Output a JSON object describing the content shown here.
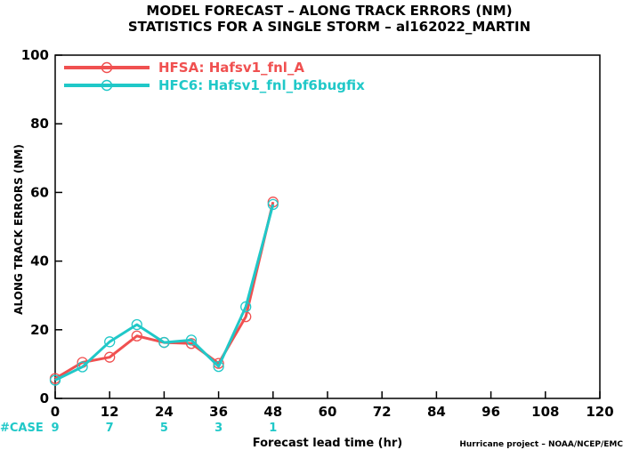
{
  "chart_data": {
    "type": "line",
    "title": "MODEL FORECAST – ALONG TRACK ERRORS (NM)",
    "subtitle": "STATISTICS FOR A SINGLE STORM – al162022_MARTIN",
    "xlabel": "Forecast lead time (hr)",
    "ylabel": "ALONG TRACK ERRORS (NM)",
    "xlim": [
      0,
      120
    ],
    "ylim": [
      0,
      100
    ],
    "xticks": [
      "0",
      "12",
      "24",
      "36",
      "48",
      "60",
      "72",
      "84",
      "96",
      "108",
      "120"
    ],
    "yticks": [
      "0",
      "20",
      "40",
      "60",
      "80",
      "100"
    ],
    "grid": false,
    "legend_position": "top-left",
    "series": [
      {
        "name": "HFSA: Hafsv1_fnl_A",
        "color": "#f05050",
        "x": [
          0,
          6,
          12,
          18,
          24,
          30,
          36,
          42,
          48
        ],
        "values": [
          5.8,
          10.5,
          12.0,
          18.2,
          16.3,
          16.0,
          10.2,
          23.8,
          57.2
        ]
      },
      {
        "name": "HFC6: Hafsv1_fnl_bf6bugfix",
        "color": "#20c8c8",
        "x": [
          0,
          6,
          12,
          18,
          24,
          30,
          36,
          42,
          48
        ],
        "values": [
          5.3,
          9.2,
          16.5,
          21.5,
          16.3,
          17.0,
          9.3,
          26.7,
          56.5
        ]
      }
    ],
    "case_label": "#CASE",
    "cases": [
      {
        "x": 0,
        "n": "9"
      },
      {
        "x": 12,
        "n": "7"
      },
      {
        "x": 24,
        "n": "5"
      },
      {
        "x": 36,
        "n": "3"
      },
      {
        "x": 48,
        "n": "1"
      }
    ],
    "case_color": "#20c8c8",
    "credit": "Hurricane project – NOAA/NCEP/EMC"
  }
}
